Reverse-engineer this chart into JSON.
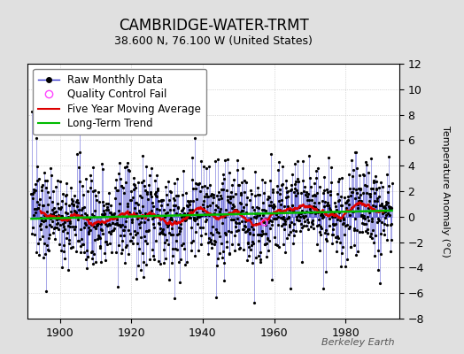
{
  "title": "CAMBRIDGE-WATER-TRMT",
  "subtitle": "38.600 N, 76.100 W (United States)",
  "ylabel": "Temperature Anomaly (°C)",
  "credit": "Berkeley Earth",
  "year_start": 1892,
  "year_end": 1993,
  "ylim": [
    -8,
    12
  ],
  "yticks": [
    -8,
    -6,
    -4,
    -2,
    0,
    2,
    4,
    6,
    8,
    10,
    12
  ],
  "xticks": [
    1900,
    1920,
    1940,
    1960,
    1980
  ],
  "bg_color": "#e0e0e0",
  "plot_bg_color": "#ffffff",
  "raw_line_color": "#3333cc",
  "raw_marker_color": "#000000",
  "qc_fail_color": "#ff44ff",
  "moving_avg_color": "#dd0000",
  "trend_color": "#00bb00",
  "grid_color": "#bbbbbb",
  "title_fontsize": 12,
  "subtitle_fontsize": 9,
  "ylabel_fontsize": 8,
  "tick_fontsize": 9,
  "legend_fontsize": 8.5,
  "credit_fontsize": 8
}
